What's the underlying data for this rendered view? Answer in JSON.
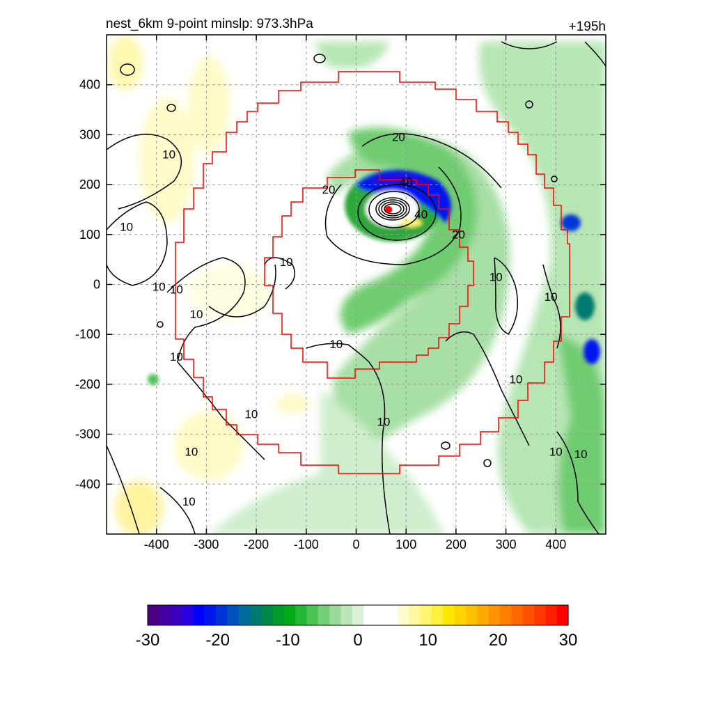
{
  "chart_data": {
    "type": "heatmap",
    "title": "nest_6km  9-point minslp: 973.3hPa",
    "forecast_hour": "+195h",
    "xlim": [
      -500,
      500
    ],
    "ylim": [
      -500,
      500
    ],
    "x_ticks": [
      -400,
      -300,
      -200,
      -100,
      0,
      100,
      200,
      300,
      400
    ],
    "x_tick_labels": [
      "-400",
      "-300",
      "-200",
      "-100",
      "0",
      "100",
      "200",
      "300",
      "400"
    ],
    "y_ticks": [
      400,
      300,
      200,
      100,
      0,
      -100,
      -200,
      -300,
      -400
    ],
    "y_tick_labels": [
      "400",
      "300",
      "200",
      "100",
      "0",
      "-100",
      "-200",
      "-300",
      "-400"
    ],
    "grid": true,
    "colorbar": {
      "min": -30,
      "max": 30,
      "tick_labels": [
        "-30",
        "-20",
        "-10",
        "0",
        "10",
        "20",
        "30"
      ],
      "colors": [
        "#4b0082",
        "#4400a0",
        "#3a00c0",
        "#2a00e0",
        "#0000ff",
        "#0018ee",
        "#0034d8",
        "#0050c0",
        "#006a9a",
        "#007a70",
        "#008848",
        "#009a2a",
        "#00aa18",
        "#22b833",
        "#4cc255",
        "#74ce78",
        "#98da98",
        "#bce6ba",
        "#dcf2d8",
        "#ffffff",
        "#ffffff",
        "#ffffff",
        "#fffcd0",
        "#fff8a0",
        "#fff570",
        "#fff040",
        "#ffe800",
        "#ffd400",
        "#ffc000",
        "#ffaa00",
        "#ff9400",
        "#ff7e00",
        "#ff6800",
        "#ff5000",
        "#ff3800",
        "#ff1e00",
        "#ff0000"
      ]
    },
    "contour_labels": [
      {
        "x": -375,
        "y": 255,
        "text": "10"
      },
      {
        "x": -460,
        "y": 110,
        "text": "10"
      },
      {
        "x": -395,
        "y": -10,
        "text": "10"
      },
      {
        "x": -360,
        "y": -15,
        "text": "10"
      },
      {
        "x": -320,
        "y": -65,
        "text": "10"
      },
      {
        "x": -360,
        "y": -150,
        "text": "10"
      },
      {
        "x": -210,
        "y": -265,
        "text": "10"
      },
      {
        "x": -330,
        "y": -340,
        "text": "10"
      },
      {
        "x": -335,
        "y": -440,
        "text": "10"
      },
      {
        "x": -140,
        "y": 40,
        "text": "10"
      },
      {
        "x": -40,
        "y": -125,
        "text": "10"
      },
      {
        "x": 85,
        "y": 290,
        "text": "20"
      },
      {
        "x": -55,
        "y": 185,
        "text": "20"
      },
      {
        "x": 100,
        "y": 200,
        "text": "40"
      },
      {
        "x": 130,
        "y": 135,
        "text": "40"
      },
      {
        "x": 205,
        "y": 95,
        "text": "20"
      },
      {
        "x": 280,
        "y": 10,
        "text": "10"
      },
      {
        "x": 390,
        "y": -30,
        "text": "10"
      },
      {
        "x": 55,
        "y": -280,
        "text": "10"
      },
      {
        "x": 320,
        "y": -195,
        "text": "10"
      },
      {
        "x": 400,
        "y": -340,
        "text": "10"
      },
      {
        "x": 450,
        "y": -345,
        "text": "10"
      }
    ],
    "storm_center": {
      "x": 65,
      "y": 150
    }
  }
}
